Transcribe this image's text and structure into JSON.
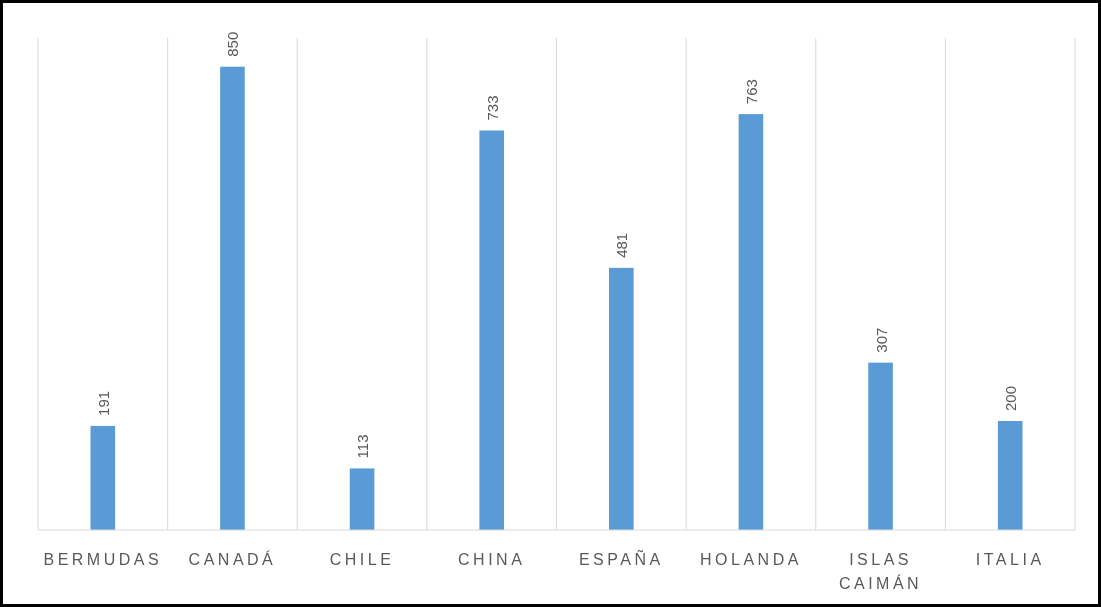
{
  "chart_data": {
    "type": "bar",
    "categories": [
      "BERMUDAS",
      "CANADÁ",
      "CHILE",
      "CHINA",
      "ESPAÑA",
      "HOLANDA",
      "ISLAS CAIMÁN",
      "ITALIA"
    ],
    "values": [
      191,
      850,
      113,
      733,
      481,
      763,
      307,
      200
    ],
    "color": "#5b9bd5",
    "data_labels": true,
    "grid": "x"
  }
}
